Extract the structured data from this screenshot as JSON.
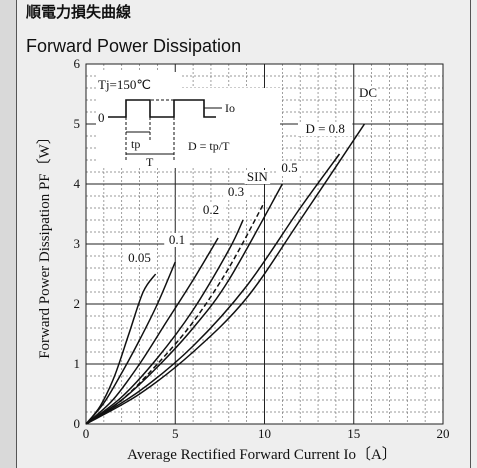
{
  "chart_data": {
    "type": "line",
    "title_jp": "順電力損失曲線",
    "title": "Forward Power Dissipation",
    "xlabel": "Average Rectified Forward Current  Io〔A〕",
    "ylabel": "Forward Power Dissipation  PF〔W〕",
    "xlim": [
      0,
      20
    ],
    "ylim": [
      0,
      6
    ],
    "xticks": [
      "0",
      "5",
      "10",
      "15",
      "20"
    ],
    "yticks": [
      "0",
      "1",
      "2",
      "3",
      "4",
      "5",
      "6"
    ],
    "grid": true,
    "series": [
      {
        "name": "0.05",
        "dash": false,
        "x": [
          0,
          0.8,
          1.6,
          2.4,
          3.2,
          3.9
        ],
        "y": [
          0,
          0.3,
          0.8,
          1.5,
          2.2,
          2.5
        ]
      },
      {
        "name": "0.1",
        "dash": false,
        "x": [
          0,
          1,
          2,
          3,
          4,
          5
        ],
        "y": [
          0,
          0.35,
          0.85,
          1.4,
          2.0,
          2.7
        ]
      },
      {
        "name": "0.2",
        "dash": false,
        "x": [
          0,
          1.5,
          3,
          4.5,
          6,
          7.4
        ],
        "y": [
          0,
          0.4,
          1.0,
          1.7,
          2.4,
          3.1
        ]
      },
      {
        "name": "0.3",
        "dash": false,
        "x": [
          0,
          2,
          4,
          6,
          8,
          8.8
        ],
        "y": [
          0,
          0.45,
          1.1,
          1.9,
          2.9,
          3.4
        ]
      },
      {
        "name": "SIN",
        "dash": true,
        "x": [
          0,
          2,
          4,
          6,
          8,
          10
        ],
        "y": [
          0,
          0.4,
          1.0,
          1.7,
          2.6,
          3.7
        ]
      },
      {
        "name": "0.5",
        "dash": false,
        "x": [
          0,
          2,
          4,
          6,
          8,
          11
        ],
        "y": [
          0,
          0.4,
          0.95,
          1.6,
          2.4,
          4.0
        ]
      },
      {
        "name": "0.8",
        "dash": false,
        "x": [
          0,
          3,
          6,
          9,
          12,
          14.2
        ],
        "y": [
          0,
          0.55,
          1.3,
          2.3,
          3.6,
          4.5
        ]
      },
      {
        "name": "DC",
        "dash": false,
        "x": [
          0,
          3,
          6,
          9,
          12,
          15.6
        ],
        "y": [
          0,
          0.5,
          1.2,
          2.1,
          3.4,
          5.0
        ]
      }
    ],
    "curve_labels": [
      {
        "text": "0.05",
        "x": 3.0,
        "y": 2.7
      },
      {
        "text": "0.1",
        "x": 5.1,
        "y": 3.0
      },
      {
        "text": "0.2",
        "x": 7.0,
        "y": 3.5
      },
      {
        "text": "0.3",
        "x": 8.4,
        "y": 3.8
      },
      {
        "text": "SIN",
        "x": 9.6,
        "y": 4.05
      },
      {
        "text": "0.5",
        "x": 11.4,
        "y": 4.2
      },
      {
        "text": "D = 0.8",
        "x": 13.4,
        "y": 4.85
      },
      {
        "text": "DC",
        "x": 15.8,
        "y": 5.45
      }
    ],
    "inset": {
      "tj": "Tj=150℃",
      "zero": "0",
      "io": "Io",
      "tp": "tp",
      "T": "T",
      "formula": "D = tp/T"
    }
  }
}
